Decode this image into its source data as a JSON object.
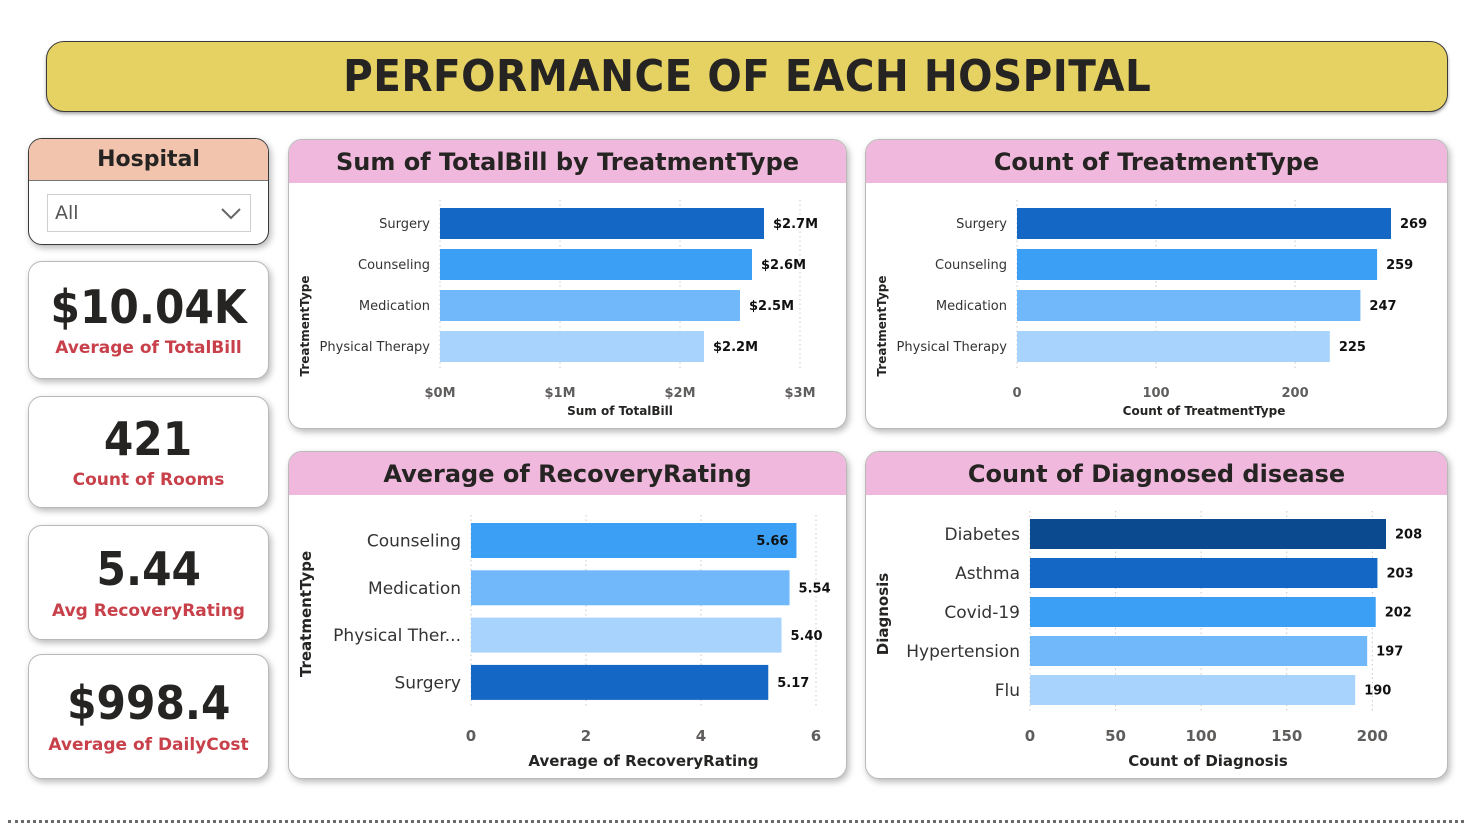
{
  "page_title": "PERFORMANCE OF EACH HOSPITAL",
  "slicer": {
    "title": "Hospital",
    "value": "All"
  },
  "kpis": [
    {
      "value": "$10.04K",
      "label": "Average of TotalBill"
    },
    {
      "value": "421",
      "label": "Count of Rooms"
    },
    {
      "value": "5.44",
      "label": "Avg RecoveryRating"
    },
    {
      "value": "$998.4",
      "label": "Average of DailyCost"
    }
  ],
  "chart_data": [
    {
      "type": "bar",
      "orientation": "horizontal",
      "title": "Sum of TotalBill by TreatmentType",
      "xlabel": "Sum of TotalBill",
      "ylabel": "TreatmentType",
      "categories": [
        "Surgery",
        "Counseling",
        "Medication",
        "Physical Therapy"
      ],
      "values": [
        2.7,
        2.6,
        2.5,
        2.2
      ],
      "value_labels": [
        "$2.7M",
        "$2.6M",
        "$2.5M",
        "$2.2M"
      ],
      "colors": [
        "#1467c4",
        "#3ba0f5",
        "#71b8fb",
        "#a7d3fd"
      ],
      "xlim": [
        0,
        3
      ],
      "ticks": [
        0,
        1,
        2,
        3
      ],
      "tick_labels": [
        "$0M",
        "$1M",
        "$2M",
        "$3M"
      ],
      "grid": true
    },
    {
      "type": "bar",
      "orientation": "horizontal",
      "title": "Count of TreatmentType",
      "xlabel": "Count of TreatmentType",
      "ylabel": "TreatmentType",
      "categories": [
        "Surgery",
        "Counseling",
        "Medication",
        "Physical Therapy"
      ],
      "values": [
        269,
        259,
        247,
        225
      ],
      "value_labels": [
        "269",
        "259",
        "247",
        "225"
      ],
      "colors": [
        "#1467c4",
        "#3ba0f5",
        "#71b8fb",
        "#a7d3fd"
      ],
      "xlim": [
        0,
        269
      ],
      "ticks": [
        0,
        100,
        200
      ],
      "tick_labels": [
        "0",
        "100",
        "200"
      ],
      "grid": true
    },
    {
      "type": "bar",
      "orientation": "horizontal",
      "title": "Average of RecoveryRating",
      "xlabel": "Average of RecoveryRating",
      "ylabel": "TreatmentType",
      "categories": [
        "Counseling",
        "Medication",
        "Physical Ther...",
        "Surgery"
      ],
      "values": [
        5.66,
        5.54,
        5.4,
        5.17
      ],
      "value_labels": [
        "5.66",
        "5.54",
        "5.40",
        "5.17"
      ],
      "colors": [
        "#3ba0f5",
        "#71b8fb",
        "#a7d3fd",
        "#1467c4"
      ],
      "xlim": [
        0,
        6
      ],
      "ticks": [
        0,
        2,
        4,
        6
      ],
      "tick_labels": [
        "0",
        "2",
        "4",
        "6"
      ],
      "grid": true
    },
    {
      "type": "bar",
      "orientation": "horizontal",
      "title": "Count of Diagnosed disease",
      "xlabel": "Count of Diagnosis",
      "ylabel": "Diagnosis",
      "categories": [
        "Diabetes",
        "Asthma",
        "Covid-19",
        "Hypertension",
        "Flu"
      ],
      "values": [
        208,
        203,
        202,
        197,
        190
      ],
      "value_labels": [
        "208",
        "203",
        "202",
        "197",
        "190"
      ],
      "colors": [
        "#0b4a8f",
        "#1467c4",
        "#3ba0f5",
        "#71b8fb",
        "#a7d3fd"
      ],
      "xlim": [
        0,
        208
      ],
      "ticks": [
        0,
        50,
        100,
        150,
        200
      ],
      "tick_labels": [
        "0",
        "50",
        "100",
        "150",
        "200"
      ],
      "grid": true
    }
  ]
}
